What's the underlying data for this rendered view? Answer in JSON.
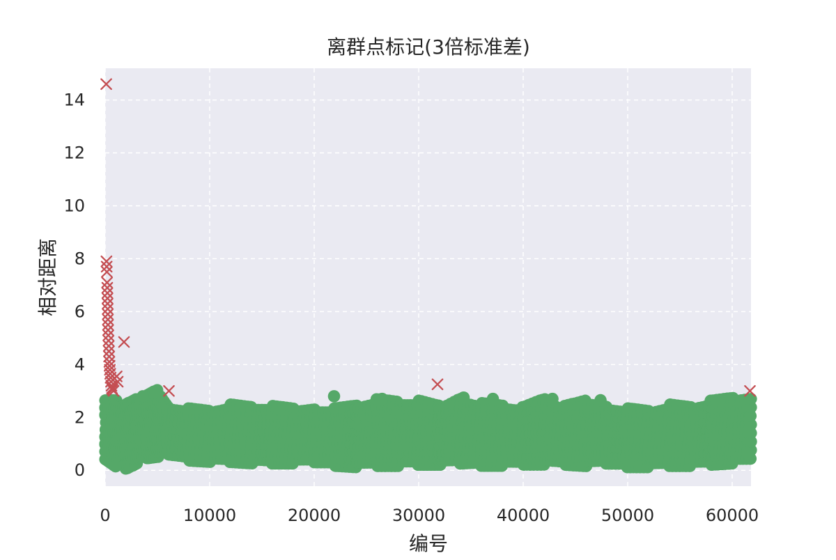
{
  "chart_data": {
    "type": "scatter",
    "title": "离群点标记(3倍标准差)",
    "xlabel": "编号",
    "ylabel": "相对距离",
    "xlim": [
      0,
      61800
    ],
    "ylim": [
      -0.6,
      15.2
    ],
    "x_ticks": [
      0,
      10000,
      20000,
      30000,
      40000,
      50000,
      60000
    ],
    "y_ticks": [
      0,
      2,
      4,
      6,
      8,
      10,
      12,
      14
    ],
    "grid": true,
    "grid_style": "dashed",
    "background_color": "#eaeaf2",
    "grid_color": "#ffffff",
    "series": [
      {
        "marker": "o",
        "color": "#55a868",
        "band_points": [
          [
            0,
            0.55,
            2.6
          ],
          [
            1000,
            0.3,
            2.6
          ],
          [
            2000,
            0.15,
            2.4
          ],
          [
            3000,
            0.35,
            2.6
          ],
          [
            4000,
            0.5,
            2.7
          ],
          [
            5000,
            0.55,
            2.9
          ],
          [
            6000,
            0.6,
            2.4
          ],
          [
            8000,
            0.5,
            2.3
          ],
          [
            10000,
            0.45,
            2.2
          ],
          [
            12000,
            0.4,
            2.4
          ],
          [
            14000,
            0.35,
            2.3
          ],
          [
            16000,
            0.3,
            2.3
          ],
          [
            18000,
            0.3,
            2.2
          ],
          [
            20000,
            0.3,
            2.3
          ],
          [
            22000,
            0.3,
            2.3
          ],
          [
            24000,
            0.25,
            2.4
          ],
          [
            26000,
            0.25,
            2.6
          ],
          [
            28000,
            0.25,
            2.5
          ],
          [
            30000,
            0.25,
            2.5
          ],
          [
            32000,
            0.25,
            2.3
          ],
          [
            34000,
            0.25,
            2.7
          ],
          [
            36000,
            0.3,
            2.5
          ],
          [
            38000,
            0.3,
            2.4
          ],
          [
            40000,
            0.3,
            2.3
          ],
          [
            42000,
            0.3,
            2.6
          ],
          [
            44000,
            0.25,
            2.3
          ],
          [
            46000,
            0.2,
            2.5
          ],
          [
            48000,
            0.25,
            2.4
          ],
          [
            50000,
            0.25,
            2.3
          ],
          [
            52000,
            0.25,
            2.2
          ],
          [
            54000,
            0.25,
            2.4
          ],
          [
            56000,
            0.25,
            2.3
          ],
          [
            58000,
            0.25,
            2.5
          ],
          [
            60000,
            0.3,
            2.6
          ],
          [
            61800,
            0.3,
            2.7
          ]
        ],
        "highlight_points": [
          [
            21900,
            2.8
          ],
          [
            26500,
            2.7
          ],
          [
            34300,
            2.75
          ],
          [
            37100,
            2.7
          ],
          [
            42800,
            2.7
          ],
          [
            47400,
            2.65
          ],
          [
            3600,
            2.8
          ],
          [
            4800,
            2.95
          ],
          [
            1000,
            0.15
          ]
        ]
      },
      {
        "marker": "x",
        "color": "#c44e52",
        "points": [
          [
            100,
            14.6
          ],
          [
            120,
            7.9
          ],
          [
            140,
            7.7
          ],
          [
            160,
            7.5
          ],
          [
            180,
            7.1
          ],
          [
            200,
            6.9
          ],
          [
            210,
            6.7
          ],
          [
            220,
            6.5
          ],
          [
            230,
            6.3
          ],
          [
            240,
            6.1
          ],
          [
            250,
            5.9
          ],
          [
            260,
            5.7
          ],
          [
            270,
            5.5
          ],
          [
            280,
            5.3
          ],
          [
            300,
            5.1
          ],
          [
            320,
            4.9
          ],
          [
            340,
            4.7
          ],
          [
            360,
            4.5
          ],
          [
            380,
            4.3
          ],
          [
            400,
            4.1
          ],
          [
            420,
            3.95
          ],
          [
            450,
            3.8
          ],
          [
            480,
            3.65
          ],
          [
            520,
            3.5
          ],
          [
            560,
            3.35
          ],
          [
            600,
            3.2
          ],
          [
            650,
            3.1
          ],
          [
            700,
            3.05
          ],
          [
            800,
            3.0
          ],
          [
            1100,
            3.55
          ],
          [
            1200,
            3.35
          ],
          [
            1800,
            4.85
          ],
          [
            6100,
            3.0
          ],
          [
            31800,
            3.25
          ],
          [
            61700,
            3.0
          ]
        ]
      }
    ]
  }
}
